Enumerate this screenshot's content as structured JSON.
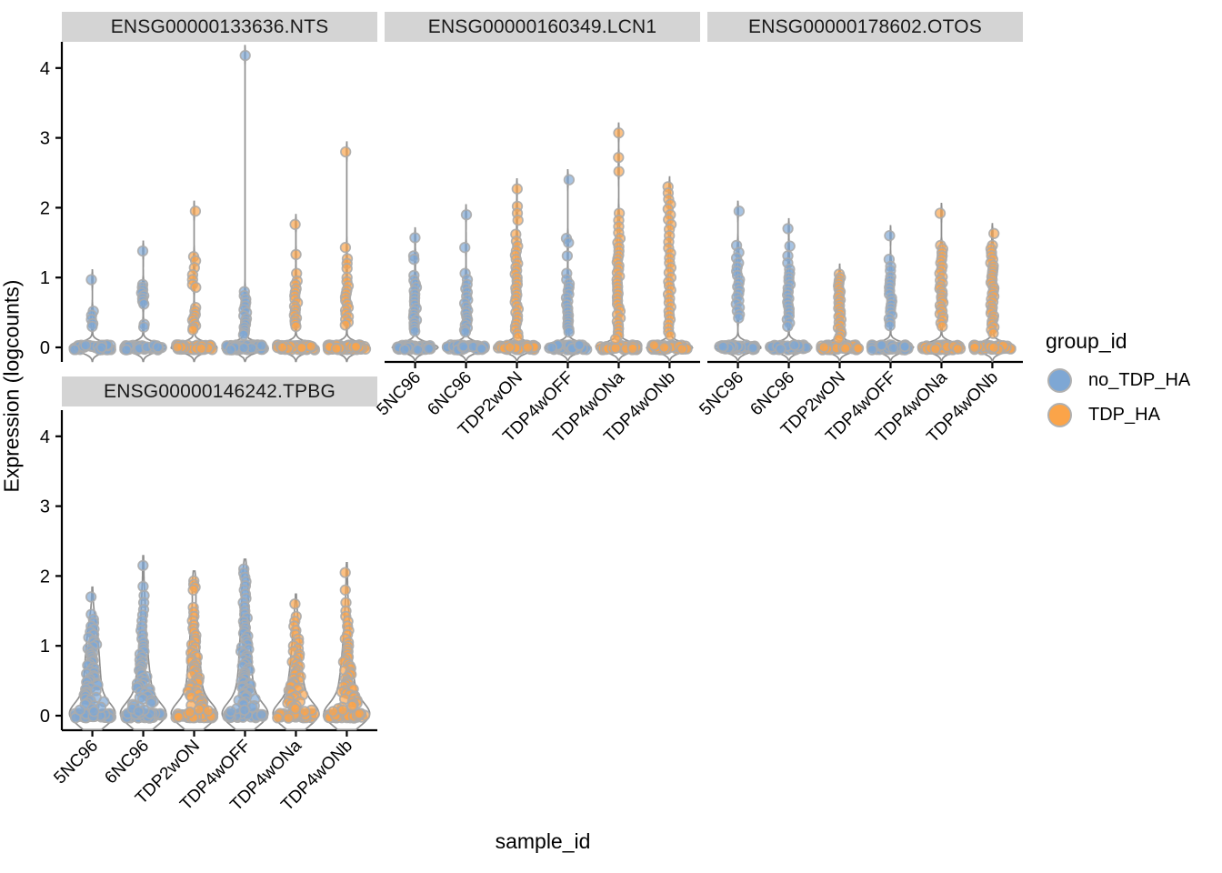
{
  "chart_data": {
    "type": "violin",
    "title": "",
    "xlabel": "sample_id",
    "ylabel": "Expression (logcounts)",
    "y_ticks": [
      0,
      1,
      2,
      3,
      4
    ],
    "ylim": [
      0,
      4.3
    ],
    "grid": "off",
    "legend_position": "right",
    "samples": [
      "5NC96",
      "6NC96",
      "TDP2wON",
      "TDP4wOFF",
      "TDP4wONa",
      "TDP4wONb"
    ],
    "sample_groups": [
      "no_TDP_HA",
      "no_TDP_HA",
      "TDP_HA",
      "no_TDP_HA",
      "TDP_HA",
      "TDP_HA"
    ],
    "facets": [
      {
        "title": "ENSG00000133636.NTS",
        "bw": 0.065,
        "violins": [
          {
            "zeros": 46,
            "values": [
              0.97,
              0.52,
              0.46,
              0.4,
              0.34,
              0.3
            ]
          },
          {
            "zeros": 50,
            "values": [
              1.38,
              0.9,
              0.86,
              0.82,
              0.78,
              0.74,
              0.7,
              0.66,
              0.62,
              0.33,
              0.29
            ]
          },
          {
            "zeros": 60,
            "values": [
              1.95,
              1.3,
              1.24,
              1.14,
              1.04,
              0.97,
              0.9,
              0.86,
              0.57,
              0.52,
              0.47,
              0.43,
              0.39,
              0.35,
              0.31,
              0.28,
              0.25
            ]
          },
          {
            "zeros": 70,
            "values": [
              4.18,
              0.8,
              0.74,
              0.69,
              0.64,
              0.59,
              0.54,
              0.5,
              0.45,
              0.41,
              0.37,
              0.33,
              0.29,
              0.25,
              0.21,
              0.18
            ]
          },
          {
            "zeros": 60,
            "values": [
              1.76,
              1.33,
              1.06,
              0.95,
              0.9,
              0.84,
              0.79,
              0.74,
              0.69,
              0.64,
              0.59,
              0.55,
              0.5,
              0.46,
              0.42,
              0.38,
              0.34,
              0.3
            ]
          },
          {
            "zeros": 66,
            "values": [
              2.8,
              1.43,
              1.27,
              1.2,
              1.13,
              1.0,
              0.94,
              0.88,
              0.82,
              0.77,
              0.72,
              0.67,
              0.62,
              0.57,
              0.53,
              0.48,
              0.44,
              0.4,
              0.36,
              0.32
            ]
          }
        ]
      },
      {
        "title": "ENSG00000160349.LCN1",
        "bw": 0.065,
        "violins": [
          {
            "zeros": 50,
            "values": [
              1.57,
              1.31,
              1.26,
              1.03,
              0.96,
              0.91,
              0.86,
              0.81,
              0.76,
              0.71,
              0.66,
              0.61,
              0.56,
              0.52,
              0.47,
              0.43,
              0.39,
              0.35,
              0.31,
              0.27,
              0.23
            ]
          },
          {
            "zeros": 55,
            "values": [
              1.9,
              1.43,
              1.06,
              0.97,
              0.9,
              0.84,
              0.79,
              0.73,
              0.68,
              0.63,
              0.58,
              0.53,
              0.49,
              0.44,
              0.4,
              0.36,
              0.32,
              0.28,
              0.25,
              0.22
            ]
          },
          {
            "zeros": 55,
            "values": [
              2.27,
              2.02,
              1.92,
              1.82,
              1.62,
              1.52,
              1.45,
              1.38,
              1.32,
              1.26,
              1.2,
              1.15,
              1.1,
              1.05,
              1.0,
              0.95,
              0.9,
              0.85,
              0.8,
              0.75,
              0.7,
              0.65,
              0.6,
              0.55,
              0.5,
              0.45,
              0.4,
              0.35,
              0.3,
              0.25,
              0.2,
              0.15
            ]
          },
          {
            "zeros": 55,
            "values": [
              2.4,
              1.56,
              1.5,
              1.31,
              1.06,
              0.97,
              0.91,
              0.86,
              0.81,
              0.76,
              0.71,
              0.66,
              0.61,
              0.56,
              0.51,
              0.46,
              0.42,
              0.38,
              0.34,
              0.3,
              0.26,
              0.22
            ]
          },
          {
            "zeros": 45,
            "values": [
              3.07,
              2.72,
              2.52,
              1.92,
              1.82,
              1.73,
              1.64,
              1.56,
              1.5,
              1.44,
              1.38,
              1.32,
              1.27,
              1.22,
              1.17,
              1.12,
              1.07,
              1.02,
              0.97,
              0.92,
              0.87,
              0.82,
              0.77,
              0.72,
              0.67,
              0.62,
              0.57,
              0.52,
              0.47,
              0.42,
              0.37,
              0.32,
              0.27,
              0.22,
              0.17,
              0.12
            ]
          },
          {
            "zeros": 50,
            "values": [
              2.3,
              2.21,
              2.12,
              2.05,
              1.98,
              1.9,
              1.83,
              1.76,
              1.69,
              1.6,
              1.51,
              1.42,
              1.35,
              1.28,
              1.21,
              1.14,
              1.07,
              1.0,
              0.94,
              0.88,
              0.82,
              0.76,
              0.7,
              0.64,
              0.58,
              0.52,
              0.46,
              0.4,
              0.34,
              0.28,
              0.22,
              0.17
            ]
          }
        ]
      },
      {
        "title": "ENSG00000178602.OTOS",
        "bw": 0.065,
        "violins": [
          {
            "zeros": 48,
            "values": [
              1.95,
              1.46,
              1.36,
              1.28,
              1.21,
              1.15,
              1.09,
              1.03,
              0.97,
              0.92,
              0.87,
              0.82,
              0.77,
              0.72,
              0.67,
              0.62,
              0.57,
              0.52,
              0.47,
              0.42
            ]
          },
          {
            "zeros": 52,
            "values": [
              1.7,
              1.45,
              1.31,
              1.21,
              1.12,
              1.06,
              1.0,
              0.95,
              0.9,
              0.85,
              0.8,
              0.75,
              0.7,
              0.65,
              0.6,
              0.55,
              0.5,
              0.45,
              0.4,
              0.35,
              0.3
            ]
          },
          {
            "zeros": 62,
            "values": [
              1.05,
              1.0,
              0.96,
              0.92,
              0.88,
              0.84,
              0.8,
              0.76,
              0.72,
              0.68,
              0.64,
              0.6,
              0.56,
              0.52,
              0.48,
              0.44,
              0.4,
              0.36,
              0.32,
              0.28,
              0.24,
              0.2,
              0.16,
              0.12
            ]
          },
          {
            "zeros": 55,
            "values": [
              1.6,
              1.26,
              1.16,
              1.1,
              1.01,
              0.96,
              0.91,
              0.86,
              0.81,
              0.76,
              0.71,
              0.66,
              0.61,
              0.56,
              0.51,
              0.46,
              0.41,
              0.36,
              0.31
            ]
          },
          {
            "zeros": 46,
            "values": [
              1.92,
              1.46,
              1.41,
              1.36,
              1.31,
              1.26,
              1.21,
              1.16,
              1.11,
              1.06,
              1.01,
              0.96,
              0.92,
              0.88,
              0.84,
              0.8,
              0.76,
              0.72,
              0.68,
              0.64,
              0.6,
              0.56,
              0.52,
              0.48,
              0.44,
              0.4,
              0.35,
              0.3
            ]
          },
          {
            "zeros": 46,
            "values": [
              1.63,
              1.46,
              1.41,
              1.36,
              1.31,
              1.26,
              1.21,
              1.17,
              1.13,
              1.09,
              1.05,
              1.01,
              0.97,
              0.93,
              0.89,
              0.85,
              0.81,
              0.77,
              0.73,
              0.69,
              0.65,
              0.61,
              0.57,
              0.53,
              0.49,
              0.45,
              0.41,
              0.37,
              0.33,
              0.29,
              0.25,
              0.2
            ]
          }
        ]
      },
      {
        "title": "ENSG00000146242.TPBG",
        "bw": 0.16,
        "violins": [
          {
            "zeros": 40,
            "values": [
              1.7,
              1.45,
              1.38,
              1.33,
              1.28,
              1.24,
              1.2,
              1.16,
              1.12,
              1.08,
              1.05,
              1.02,
              0.99,
              0.96,
              0.93,
              0.9,
              0.88,
              0.85,
              0.82,
              0.79,
              0.77,
              0.74,
              0.72,
              0.69,
              0.67,
              0.64,
              0.62,
              0.6,
              0.57,
              0.55,
              0.53,
              0.5,
              0.48,
              0.46,
              0.44,
              0.42,
              0.4,
              0.38,
              0.36,
              0.34,
              0.32,
              0.3,
              0.28,
              0.26,
              0.24,
              0.22,
              0.2,
              0.18,
              0.16,
              0.14,
              0.12,
              0.1,
              0.08,
              0.06
            ]
          },
          {
            "zeros": 42,
            "values": [
              2.15,
              1.85,
              1.72,
              1.62,
              1.52,
              1.44,
              1.36,
              1.28,
              1.22,
              1.16,
              1.1,
              1.05,
              1.0,
              0.96,
              0.92,
              0.88,
              0.84,
              0.8,
              0.77,
              0.74,
              0.71,
              0.68,
              0.65,
              0.62,
              0.59,
              0.56,
              0.54,
              0.51,
              0.49,
              0.46,
              0.44,
              0.42,
              0.4,
              0.38,
              0.36,
              0.34,
              0.32,
              0.3,
              0.28,
              0.26,
              0.24,
              0.22,
              0.2,
              0.18,
              0.16,
              0.14,
              0.12,
              0.1,
              0.08,
              0.06
            ]
          },
          {
            "zeros": 40,
            "values": [
              1.93,
              1.88,
              1.84,
              1.8,
              1.55,
              1.48,
              1.42,
              1.36,
              1.3,
              1.25,
              1.2,
              1.15,
              1.1,
              1.06,
              1.02,
              0.98,
              0.94,
              0.9,
              0.87,
              0.84,
              0.81,
              0.78,
              0.75,
              0.72,
              0.69,
              0.66,
              0.63,
              0.6,
              0.58,
              0.55,
              0.52,
              0.5,
              0.47,
              0.45,
              0.42,
              0.4,
              0.38,
              0.35,
              0.33,
              0.31,
              0.29,
              0.27,
              0.25,
              0.23,
              0.21,
              0.19,
              0.17,
              0.15,
              0.13,
              0.11,
              0.09,
              0.07,
              0.05
            ]
          },
          {
            "zeros": 40,
            "values": [
              2.1,
              2.04,
              1.98,
              1.92,
              1.86,
              1.8,
              1.74,
              1.68,
              1.62,
              1.56,
              1.5,
              1.45,
              1.4,
              1.35,
              1.3,
              1.26,
              1.22,
              1.18,
              1.14,
              1.1,
              1.06,
              1.02,
              0.98,
              0.95,
              0.92,
              0.89,
              0.86,
              0.83,
              0.8,
              0.77,
              0.74,
              0.71,
              0.68,
              0.65,
              0.62,
              0.59,
              0.56,
              0.53,
              0.5,
              0.48,
              0.46,
              0.44,
              0.42,
              0.4,
              0.38,
              0.36,
              0.34,
              0.32,
              0.3,
              0.28,
              0.26,
              0.24,
              0.22,
              0.2,
              0.18,
              0.16,
              0.14,
              0.12,
              0.1,
              0.08,
              0.06
            ]
          },
          {
            "zeros": 42,
            "values": [
              1.6,
              1.42,
              1.35,
              1.28,
              1.22,
              1.16,
              1.1,
              1.05,
              1.0,
              0.96,
              0.92,
              0.88,
              0.84,
              0.8,
              0.77,
              0.74,
              0.71,
              0.68,
              0.65,
              0.62,
              0.59,
              0.56,
              0.53,
              0.5,
              0.48,
              0.46,
              0.44,
              0.42,
              0.4,
              0.38,
              0.36,
              0.34,
              0.32,
              0.3,
              0.28,
              0.26,
              0.24,
              0.22,
              0.2,
              0.18,
              0.16,
              0.14,
              0.12,
              0.1,
              0.08,
              0.06
            ]
          },
          {
            "zeros": 42,
            "values": [
              2.05,
              1.8,
              1.62,
              1.5,
              1.42,
              1.35,
              1.28,
              1.22,
              1.16,
              1.1,
              1.05,
              1.0,
              0.96,
              0.92,
              0.88,
              0.84,
              0.8,
              0.77,
              0.74,
              0.71,
              0.68,
              0.65,
              0.62,
              0.59,
              0.56,
              0.53,
              0.5,
              0.48,
              0.46,
              0.44,
              0.42,
              0.4,
              0.38,
              0.36,
              0.34,
              0.32,
              0.3,
              0.28,
              0.26,
              0.24,
              0.22,
              0.2,
              0.18,
              0.16,
              0.14,
              0.12,
              0.1,
              0.08,
              0.06
            ]
          }
        ]
      }
    ],
    "colors": {
      "strip_bg": "#D4D4D4",
      "violin_outline": "#8F8F8F",
      "violin_fill": "#FFFFFF",
      "point_stroke": "#ABABAB",
      "axis": "#000000"
    }
  },
  "legend": {
    "title": "group_id",
    "items": [
      {
        "label": "no_TDP_HA",
        "color": "#7EA7D4"
      },
      {
        "label": "TDP_HA",
        "color": "#FBA449"
      }
    ]
  }
}
